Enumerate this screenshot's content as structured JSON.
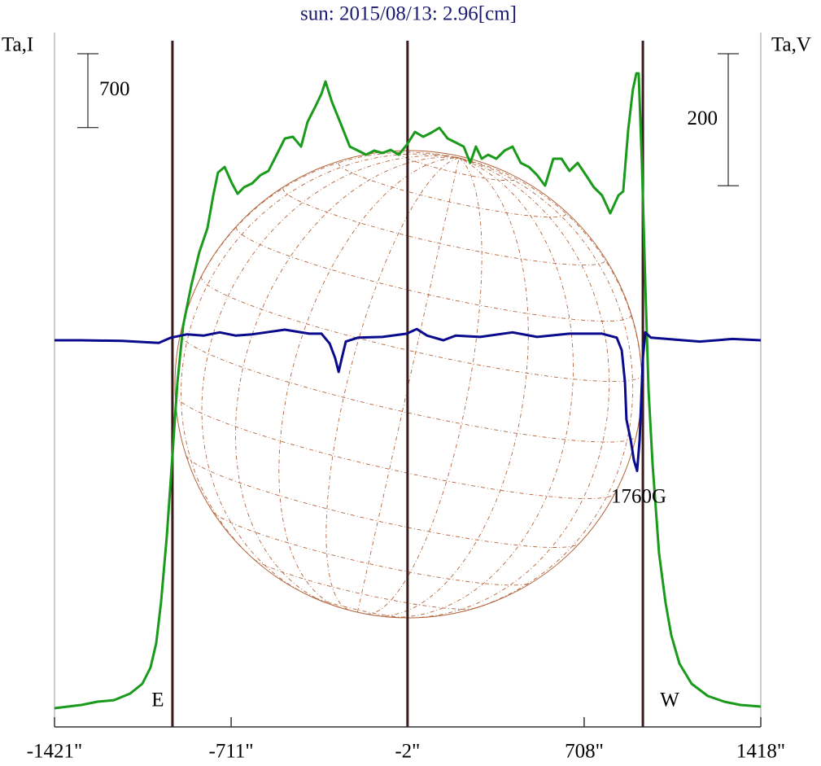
{
  "chart_data": {
    "type": "line",
    "title": "sun: 2015/08/13: 2.96[cm]",
    "ylabel": "Ta,I",
    "y2label": "Ta,V",
    "xlim": [
      -1421,
      1418
    ],
    "xticks": [
      {
        "value": -1421,
        "label": "-1421\""
      },
      {
        "value": -711,
        "label": "-711\""
      },
      {
        "value": -2,
        "label": "-2\""
      },
      {
        "value": 708,
        "label": "708\""
      },
      {
        "value": 1418,
        "label": "1418\""
      }
    ],
    "ylim": [
      0,
      6500
    ],
    "y2lim": [
      -586,
      454
    ],
    "scale_bars": [
      {
        "value": 700,
        "axis": "y"
      },
      {
        "value": 200,
        "axis": "y2"
      }
    ],
    "vlines": [
      {
        "value": -947,
        "label": "E"
      },
      {
        "value": -2
      },
      {
        "value": 944,
        "label": "W"
      }
    ],
    "annotation": "1760G",
    "series": [
      {
        "color": "#1a9a1a",
        "axis": "y",
        "x": [
          -1421,
          -1313,
          -1248,
          -1182,
          -1117,
          -1068,
          -1035,
          -1012,
          -993,
          -970,
          -947,
          -927,
          -904,
          -871,
          -839,
          -806,
          -783,
          -764,
          -737,
          -708,
          -685,
          -659,
          -626,
          -593,
          -561,
          -528,
          -495,
          -463,
          -430,
          -404,
          -371,
          -348,
          -332,
          -306,
          -273,
          -234,
          -201,
          -168,
          -136,
          -103,
          -70,
          -37,
          -5,
          28,
          61,
          93,
          126,
          159,
          191,
          224,
          250,
          273,
          296,
          322,
          355,
          388,
          420,
          453,
          486,
          519,
          551,
          584,
          617,
          649,
          682,
          715,
          747,
          780,
          813,
          846,
          865,
          885,
          904,
          918,
          927,
          940,
          954,
          967,
          983,
          1009,
          1035,
          1058,
          1091,
          1140,
          1205,
          1271,
          1336,
          1418
        ],
        "values": [
          177,
          208,
          239,
          254,
          316,
          409,
          563,
          794,
          1180,
          1796,
          2567,
          3261,
          3801,
          4187,
          4495,
          4726,
          5035,
          5251,
          5304,
          5150,
          5050,
          5112,
          5150,
          5227,
          5266,
          5420,
          5574,
          5590,
          5497,
          5729,
          5883,
          5998,
          6114,
          5921,
          5729,
          5497,
          5459,
          5420,
          5459,
          5436,
          5466,
          5420,
          5513,
          5636,
          5590,
          5628,
          5675,
          5574,
          5536,
          5497,
          5343,
          5497,
          5382,
          5420,
          5382,
          5459,
          5497,
          5343,
          5304,
          5227,
          5127,
          5382,
          5382,
          5266,
          5343,
          5227,
          5112,
          5035,
          4865,
          5035,
          5073,
          5651,
          6037,
          6191,
          6191,
          5343,
          4187,
          3184,
          2490,
          1642,
          1180,
          871,
          601,
          409,
          293,
          239,
          208,
          193
        ]
      },
      {
        "color": "#0a0a8c",
        "axis": "y2",
        "x": [
          -1421,
          -1313,
          -1150,
          -1002,
          -953,
          -888,
          -822,
          -757,
          -692,
          -626,
          -495,
          -397,
          -348,
          -315,
          -293,
          -279,
          -266,
          -250,
          -201,
          -103,
          -5,
          35,
          77,
          142,
          191,
          290,
          420,
          519,
          649,
          780,
          839,
          859,
          872,
          878,
          895,
          908,
          921,
          931,
          944,
          954,
          976,
          1107,
          1173,
          1304,
          1418
        ],
        "values": [
          0,
          0,
          -1,
          -4,
          4,
          9,
          7,
          12,
          7,
          9,
          16,
          10,
          10,
          -5,
          -27,
          -48,
          -27,
          -2,
          4,
          5,
          10,
          17,
          7,
          0,
          7,
          5,
          12,
          5,
          10,
          10,
          4,
          -15,
          -64,
          -120,
          -151,
          -182,
          -198,
          -151,
          -27,
          12,
          4,
          0,
          -2,
          2,
          0
        ]
      }
    ]
  }
}
